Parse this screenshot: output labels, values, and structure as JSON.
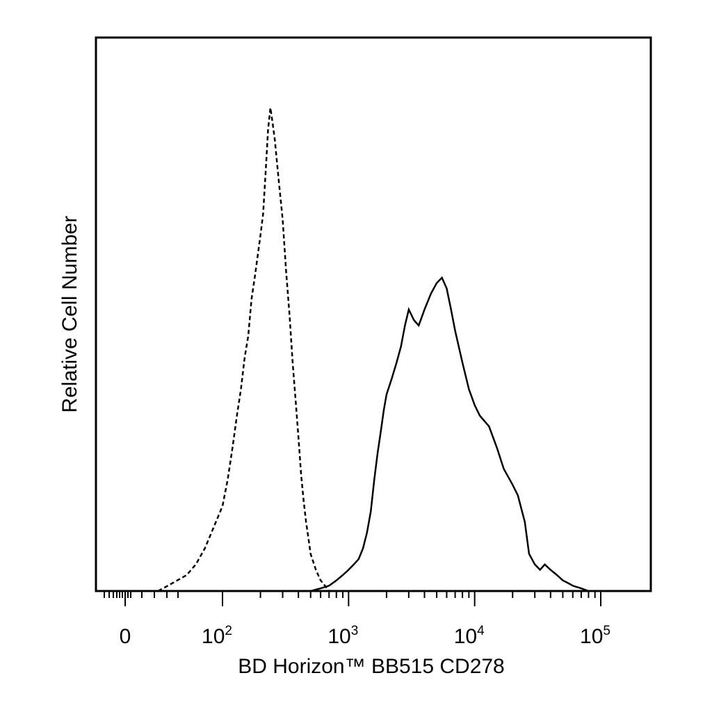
{
  "chart_data": {
    "type": "line",
    "title": "",
    "xlabel": "BD Horizon™ BB515 CD278",
    "ylabel": "Relative Cell Number",
    "x_scale": "biexponential",
    "x_tick_labels": [
      {
        "value": 0,
        "base": "0",
        "exp": ""
      },
      {
        "value": 100,
        "base": "10",
        "exp": "2"
      },
      {
        "value": 1000,
        "base": "10",
        "exp": "3"
      },
      {
        "value": 10000,
        "base": "10",
        "exp": "4"
      },
      {
        "value": 100000,
        "base": "10",
        "exp": "5"
      }
    ],
    "ylim": [
      0,
      100
    ],
    "grid": false,
    "legend": "none",
    "series": [
      {
        "style": "dashed",
        "color": "#000000",
        "points": [
          [
            30,
            0
          ],
          [
            40,
            1
          ],
          [
            50,
            2
          ],
          [
            60,
            3
          ],
          [
            70,
            5
          ],
          [
            80,
            8
          ],
          [
            90,
            12
          ],
          [
            100,
            16
          ],
          [
            110,
            21
          ],
          [
            120,
            27
          ],
          [
            130,
            33
          ],
          [
            140,
            38
          ],
          [
            150,
            44
          ],
          [
            160,
            48
          ],
          [
            170,
            55
          ],
          [
            180,
            59
          ],
          [
            190,
            63
          ],
          [
            200,
            67
          ],
          [
            210,
            71
          ],
          [
            220,
            79
          ],
          [
            230,
            87
          ],
          [
            240,
            91
          ],
          [
            250,
            88
          ],
          [
            260,
            85
          ],
          [
            280,
            77
          ],
          [
            300,
            70
          ],
          [
            320,
            60
          ],
          [
            340,
            52
          ],
          [
            360,
            43
          ],
          [
            380,
            36
          ],
          [
            400,
            29
          ],
          [
            420,
            22
          ],
          [
            440,
            17
          ],
          [
            460,
            13
          ],
          [
            480,
            10
          ],
          [
            500,
            7
          ],
          [
            550,
            4
          ],
          [
            600,
            2
          ],
          [
            650,
            1
          ],
          [
            700,
            0
          ]
        ]
      },
      {
        "style": "solid",
        "color": "#000000",
        "points": [
          [
            500,
            0
          ],
          [
            600,
            0.5
          ],
          [
            700,
            1
          ],
          [
            800,
            2
          ],
          [
            900,
            3
          ],
          [
            1000,
            4
          ],
          [
            1100,
            5
          ],
          [
            1200,
            6
          ],
          [
            1300,
            8
          ],
          [
            1400,
            11
          ],
          [
            1500,
            15
          ],
          [
            1600,
            21
          ],
          [
            1700,
            26
          ],
          [
            1800,
            30
          ],
          [
            1900,
            34
          ],
          [
            2000,
            37
          ],
          [
            2200,
            40
          ],
          [
            2400,
            43
          ],
          [
            2600,
            46
          ],
          [
            2800,
            50
          ],
          [
            3000,
            53
          ],
          [
            3300,
            51
          ],
          [
            3600,
            50
          ],
          [
            4000,
            53
          ],
          [
            4500,
            56
          ],
          [
            5000,
            58
          ],
          [
            5500,
            59
          ],
          [
            6000,
            57
          ],
          [
            6500,
            53
          ],
          [
            7000,
            49
          ],
          [
            8000,
            43
          ],
          [
            9000,
            38
          ],
          [
            10000,
            35
          ],
          [
            11000,
            33
          ],
          [
            13000,
            31
          ],
          [
            15000,
            27
          ],
          [
            17000,
            23
          ],
          [
            20000,
            20
          ],
          [
            22000,
            18
          ],
          [
            25000,
            13
          ],
          [
            27000,
            7
          ],
          [
            30000,
            5
          ],
          [
            33000,
            4
          ],
          [
            36000,
            5
          ],
          [
            40000,
            4
          ],
          [
            45000,
            3
          ],
          [
            50000,
            2
          ],
          [
            55000,
            1.5
          ],
          [
            60000,
            1
          ],
          [
            70000,
            0.5
          ],
          [
            80000,
            0
          ]
        ]
      }
    ]
  }
}
